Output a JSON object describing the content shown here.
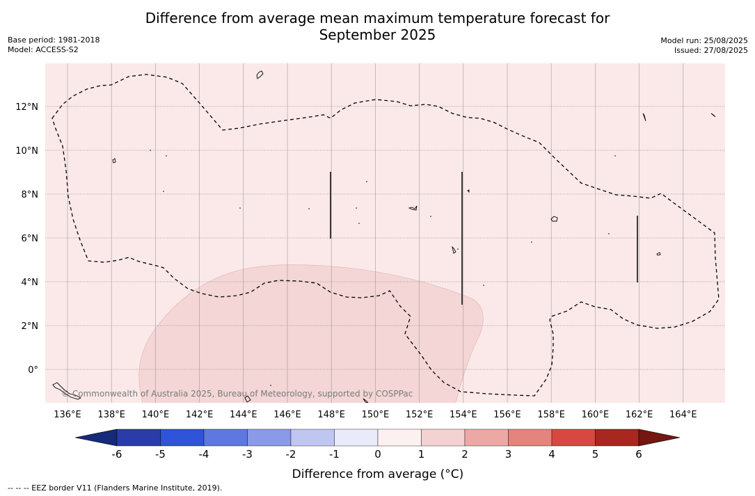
{
  "title_line1": "Difference from average mean maximum temperature forecast for",
  "title_line2": "September 2025",
  "meta": {
    "base_period": "Base period: 1981-2018",
    "model": "Model: ACCESS-S2",
    "model_run": "Model run: 25/08/2025",
    "issued": "Issued: 27/08/2025"
  },
  "copyright": "© Commonwealth of Australia 2025, Bureau of Meteorology, supported by COSPPac",
  "footnote": "--  --  -- EEZ border V11 (Flanders Marine Institute, 2019).",
  "map": {
    "lon_ticks": [
      "136°E",
      "138°E",
      "140°E",
      "142°E",
      "144°E",
      "146°E",
      "148°E",
      "150°E",
      "152°E",
      "154°E",
      "156°E",
      "158°E",
      "160°E",
      "162°E",
      "164°E"
    ],
    "lat_ticks": [
      "12°N",
      "10°N",
      "8°N",
      "6°N",
      "4°N",
      "2°N",
      "0°"
    ],
    "background_color": "#fbe9e9",
    "anomaly_patch_color": "#f4d6d6",
    "anomaly_patch_category": "1 to 2"
  },
  "colorbar": {
    "title": "Difference from average (°C)",
    "tick_labels": [
      "-6",
      "-5",
      "-4",
      "-3",
      "-2",
      "-1",
      "0",
      "1",
      "2",
      "3",
      "4",
      "5",
      "6"
    ],
    "colors": [
      "#152a7a",
      "#2a3ca8",
      "#2f53d9",
      "#5e78e0",
      "#8a9ae8",
      "#bfc6f2",
      "#e9ebfb",
      "#fdf0f0",
      "#f4d2d2",
      "#eca8a4",
      "#e4847c",
      "#d84840",
      "#a8271e",
      "#741611"
    ]
  }
}
